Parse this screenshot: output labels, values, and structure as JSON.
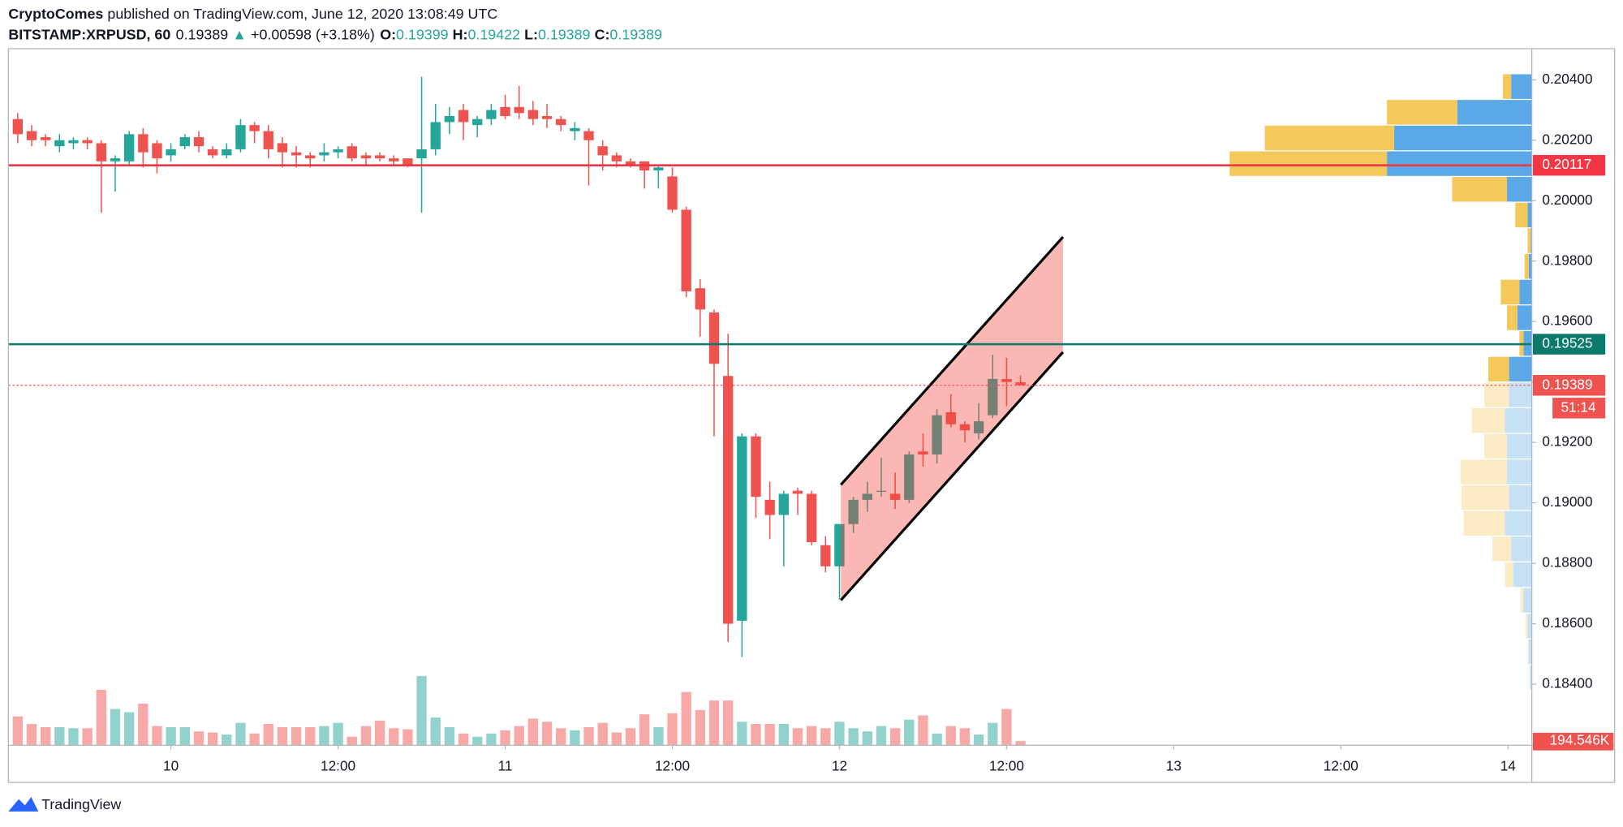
{
  "header": {
    "author": "CryptoComes",
    "published": "published on TradingView.com, June 12, 2020 13:08:49 UTC",
    "symbol": "BITSTAMP:XRPUSD, 60",
    "last": "0.19389",
    "arrow": "▲",
    "change": "+0.00598 (+3.18%)",
    "o_label": "O:",
    "o": "0.19399",
    "h_label": "H:",
    "h": "0.19422",
    "l_label": "L:",
    "l": "0.19389",
    "c_label": "C:",
    "c": "0.19389"
  },
  "brand": "TradingView",
  "chart_data": {
    "type": "candlestick",
    "x": [
      13,
      14,
      15,
      16,
      17,
      18,
      19,
      20,
      21,
      22,
      23,
      24,
      25,
      26,
      27,
      28,
      29,
      30,
      31,
      32,
      33,
      34,
      35,
      36,
      37,
      38,
      39,
      40,
      41,
      42,
      43,
      44,
      45,
      46,
      47,
      48,
      49,
      50,
      51,
      52,
      53,
      54,
      55,
      56,
      57,
      58,
      59,
      60,
      61,
      62,
      63,
      64,
      65,
      66,
      67,
      68,
      69,
      70,
      71,
      72,
      73,
      74,
      75,
      76,
      77,
      78,
      79,
      80,
      81,
      82,
      83,
      84,
      85
    ],
    "open": [
      0.2027,
      0.2023,
      0.2021,
      0.2018,
      0.2019,
      0.202,
      0.2019,
      0.2013,
      0.2013,
      0.2022,
      0.2019,
      0.2015,
      0.2018,
      0.2021,
      0.2017,
      0.2015,
      0.2017,
      0.2025,
      0.2023,
      0.2019,
      0.2016,
      0.2015,
      0.2015,
      0.2016,
      0.2018,
      0.2015,
      0.2015,
      0.2014,
      0.2014,
      0.2014,
      0.2017,
      0.2026,
      0.203,
      0.2025,
      0.2027,
      0.2031,
      0.2031,
      0.203,
      0.2028,
      0.2027,
      0.2023,
      0.2023,
      0.2018,
      0.2015,
      0.2013,
      0.2013,
      0.201,
      0.2008,
      0.1997,
      0.1971,
      0.1963,
      0.1942,
      0.1861,
      0.1922,
      0.1901,
      0.1896,
      0.1904,
      0.1903,
      0.1886,
      0.1879,
      0.1893,
      0.1901,
      0.1904,
      0.1903,
      0.1901,
      0.1917,
      0.1916,
      0.193,
      0.1926,
      0.1923,
      0.1929,
      0.1941,
      0.19399
    ],
    "high": [
      0.2029,
      0.2025,
      0.2022,
      0.2022,
      0.2021,
      0.2021,
      0.202,
      0.2015,
      0.2023,
      0.2024,
      0.202,
      0.2019,
      0.2022,
      0.2023,
      0.2018,
      0.2019,
      0.2027,
      0.2026,
      0.2025,
      0.2021,
      0.2018,
      0.2016,
      0.2019,
      0.2018,
      0.2019,
      0.2016,
      0.2016,
      0.2015,
      0.2014,
      0.2041,
      0.2032,
      0.2031,
      0.2032,
      0.2028,
      0.2032,
      0.2035,
      0.2038,
      0.2033,
      0.2032,
      0.2028,
      0.2026,
      0.2024,
      0.202,
      0.2016,
      0.2014,
      0.2013,
      0.2012,
      0.2011,
      0.1998,
      0.1974,
      0.1964,
      0.1956,
      0.1923,
      0.1923,
      0.1907,
      0.1904,
      0.1905,
      0.1904,
      0.1889,
      0.1893,
      0.1902,
      0.1907,
      0.1915,
      0.191,
      0.1917,
      0.1923,
      0.1931,
      0.1936,
      0.1927,
      0.1933,
      0.1949,
      0.1948,
      0.19422
    ],
    "low": [
      0.2019,
      0.2018,
      0.2018,
      0.2016,
      0.2017,
      0.2017,
      0.1996,
      0.2003,
      0.2012,
      0.2011,
      0.2009,
      0.2013,
      0.2017,
      0.2016,
      0.2014,
      0.2014,
      0.2016,
      0.2019,
      0.2014,
      0.2011,
      0.2011,
      0.2011,
      0.2013,
      0.2014,
      0.2013,
      0.2012,
      0.2013,
      0.2012,
      0.2011,
      0.1996,
      0.2015,
      0.2022,
      0.202,
      0.2021,
      0.2025,
      0.2027,
      0.2027,
      0.2025,
      0.2024,
      0.2023,
      0.202,
      0.2005,
      0.201,
      0.2011,
      0.2011,
      0.2004,
      0.2004,
      0.1996,
      0.1968,
      0.1955,
      0.1922,
      0.1854,
      0.1849,
      0.1895,
      0.1888,
      0.1879,
      0.1896,
      0.1886,
      0.1877,
      0.1868,
      0.189,
      0.1897,
      0.1902,
      0.1898,
      0.19,
      0.1912,
      0.1913,
      0.1925,
      0.192,
      0.1921,
      0.1928,
      0.1932,
      0.19389
    ],
    "close": [
      0.2022,
      0.202,
      0.202,
      0.202,
      0.202,
      0.2019,
      0.2013,
      0.2014,
      0.2022,
      0.2016,
      0.2014,
      0.2017,
      0.2021,
      0.2018,
      0.2015,
      0.2017,
      0.2025,
      0.2023,
      0.2017,
      0.2016,
      0.2015,
      0.2014,
      0.2016,
      0.2017,
      0.2014,
      0.2014,
      0.2014,
      0.2013,
      0.2012,
      0.2017,
      0.2026,
      0.2028,
      0.2026,
      0.2027,
      0.203,
      0.2028,
      0.2029,
      0.2027,
      0.2027,
      0.2025,
      0.2024,
      0.202,
      0.2015,
      0.2013,
      0.2012,
      0.201,
      0.2011,
      0.1997,
      0.197,
      0.1964,
      0.1946,
      0.186,
      0.1922,
      0.1902,
      0.1896,
      0.1903,
      0.1903,
      0.1887,
      0.1879,
      0.1893,
      0.1901,
      0.1903,
      0.1904,
      0.1901,
      0.1916,
      0.1916,
      0.1929,
      0.1926,
      0.1924,
      0.1927,
      0.1941,
      0.194,
      0.19389
    ],
    "volume": [
      1350,
      1000,
      850,
      850,
      800,
      800,
      2600,
      1700,
      1550,
      1950,
      900,
      850,
      850,
      650,
      600,
      500,
      1050,
      550,
      1000,
      850,
      850,
      850,
      900,
      1050,
      400,
      900,
      1150,
      800,
      750,
      3250,
      1300,
      850,
      550,
      400,
      550,
      700,
      900,
      1250,
      1100,
      800,
      700,
      850,
      1050,
      600,
      800,
      1450,
      850,
      1500,
      2500,
      1650,
      2100,
      2100,
      1100,
      1000,
      1000,
      1000,
      800,
      900,
      800,
      1100,
      800,
      650,
      900,
      800,
      1200,
      1400,
      550,
      900,
      800,
      500,
      1050,
      1700,
      194.546
    ],
    "volume_label": "194.546K",
    "volume_lim": [
      0,
      8500
    ],
    "up_color": "#26a69a",
    "down_color": "#ef5350",
    "xlim": [
      12.33,
      121.71
    ],
    "xticks": [
      {
        "value": 24,
        "label": "10"
      },
      {
        "value": 36,
        "label": "12:00"
      },
      {
        "value": 48,
        "label": "11"
      },
      {
        "value": 60,
        "label": "12:00"
      },
      {
        "value": 72,
        "label": "12"
      },
      {
        "value": 84,
        "label": "12:00"
      },
      {
        "value": 96,
        "label": "13"
      },
      {
        "value": 108,
        "label": "12:00"
      },
      {
        "value": 120,
        "label": "14"
      }
    ],
    "ylim": [
      0.18198,
      0.20503
    ],
    "yticks": [
      {
        "value": 0.184,
        "label": "0.18400"
      },
      {
        "value": 0.186,
        "label": "0.18600"
      },
      {
        "value": 0.188,
        "label": "0.18800"
      },
      {
        "value": 0.19,
        "label": "0.19000"
      },
      {
        "value": 0.192,
        "label": "0.19200"
      },
      {
        "value": 0.194,
        "label": "0.19400"
      },
      {
        "value": 0.196,
        "label": "0.19600"
      },
      {
        "value": 0.198,
        "label": "0.19800"
      },
      {
        "value": 0.2,
        "label": "0.20000"
      },
      {
        "value": 0.202,
        "label": "0.20200"
      },
      {
        "value": 0.204,
        "label": "0.20400"
      }
    ],
    "grid": true,
    "levels": [
      {
        "value": 0.20117,
        "label": "0.20117",
        "color": "#f23645"
      },
      {
        "value": 0.19525,
        "label": "0.19525",
        "color": "#0b7a6b"
      }
    ],
    "current": {
      "value": 0.19389,
      "label": "0.19389",
      "countdown": "51:14",
      "color": "#ef5350"
    },
    "channel": {
      "x": [
        72.1,
        88.05,
        88.05,
        72.1
      ],
      "y": [
        0.1906,
        0.1988,
        0.19499,
        0.18678
      ],
      "color": "#f44336"
    },
    "volume_profile": {
      "xlim": [
        0,
        300
      ],
      "up_color": "#5aa9e6",
      "down_color": "#f5c85c",
      "rows": [
        {
          "low": 0.20335,
          "high": 0.2042,
          "up": 20,
          "down": 8
        },
        {
          "low": 0.2025,
          "high": 0.20335,
          "up": 72,
          "down": 68
        },
        {
          "low": 0.20165,
          "high": 0.2025,
          "up": 133,
          "down": 125
        },
        {
          "low": 0.2008,
          "high": 0.20165,
          "up": 140,
          "down": 152
        },
        {
          "low": 0.19995,
          "high": 0.2008,
          "up": 24,
          "down": 53
        },
        {
          "low": 0.1991,
          "high": 0.19995,
          "up": 4,
          "down": 12
        },
        {
          "low": 0.19825,
          "high": 0.1991,
          "up": 1,
          "down": 3
        },
        {
          "low": 0.1974,
          "high": 0.19825,
          "up": 3,
          "down": 4
        },
        {
          "low": 0.19655,
          "high": 0.1974,
          "up": 12,
          "down": 18
        },
        {
          "low": 0.1957,
          "high": 0.19655,
          "up": 14,
          "down": 10
        },
        {
          "low": 0.19485,
          "high": 0.1957,
          "up": 8,
          "down": 4
        },
        {
          "low": 0.194,
          "high": 0.19485,
          "up": 22,
          "down": 20
        },
        {
          "low": 0.19315,
          "high": 0.194,
          "up": 22,
          "down": 24
        },
        {
          "low": 0.1923,
          "high": 0.19315,
          "up": 26,
          "down": 32
        },
        {
          "low": 0.19145,
          "high": 0.1923,
          "up": 24,
          "down": 22
        },
        {
          "low": 0.1906,
          "high": 0.19145,
          "up": 24,
          "down": 45
        },
        {
          "low": 0.18975,
          "high": 0.1906,
          "up": 22,
          "down": 46
        },
        {
          "low": 0.1889,
          "high": 0.18975,
          "up": 26,
          "down": 40
        },
        {
          "low": 0.18805,
          "high": 0.1889,
          "up": 20,
          "down": 18
        },
        {
          "low": 0.1872,
          "high": 0.18805,
          "up": 18,
          "down": 8
        },
        {
          "low": 0.18635,
          "high": 0.1872,
          "up": 8,
          "down": 3
        },
        {
          "low": 0.1855,
          "high": 0.18635,
          "up": 4,
          "down": 2
        },
        {
          "low": 0.18465,
          "high": 0.1855,
          "up": 3,
          "down": 1
        },
        {
          "low": 0.1838,
          "high": 0.18465,
          "up": 2,
          "down": 0
        }
      ]
    }
  }
}
